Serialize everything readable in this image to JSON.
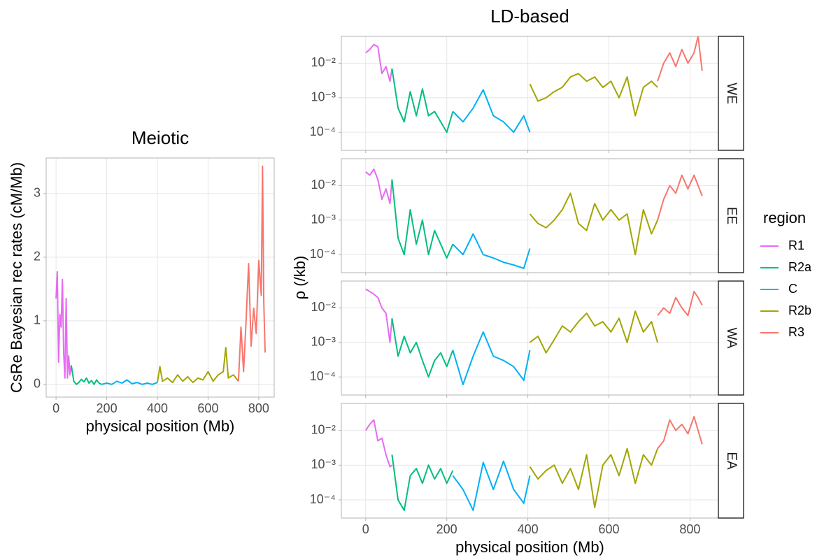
{
  "legend": {
    "title": "region"
  },
  "chart_data": [
    {
      "type": "line",
      "title": "Meiotic",
      "xlabel": "physical position (Mb)",
      "ylabel": "CsRe Bayesian rec rates (cM/Mb)",
      "xlim": [
        -39,
        861
      ],
      "ylim": [
        -0.2,
        3.56
      ],
      "xticks": [
        0,
        200,
        400,
        600,
        800
      ],
      "yticks": [
        0,
        1,
        2,
        3
      ],
      "grid": true,
      "series": [
        {
          "name": "R1",
          "color": "#E76BF3",
          "x": [
            0,
            5,
            10,
            15,
            20,
            25,
            30,
            35,
            40,
            45,
            50,
            55,
            60
          ],
          "values": [
            1.35,
            1.77,
            0.35,
            1.1,
            0.9,
            1.65,
            0.5,
            0.1,
            1.35,
            0.1,
            0.45,
            0.15,
            0.3
          ]
        },
        {
          "name": "R2a",
          "color": "#00BF7D",
          "x": [
            60,
            70,
            80,
            90,
            100,
            110,
            120,
            130,
            140,
            150,
            160,
            170,
            180
          ],
          "values": [
            0.3,
            0.05,
            0.0,
            0.03,
            0.08,
            0.04,
            0.1,
            0.02,
            0.06,
            0.0,
            0.07,
            0.02,
            0.0
          ]
        },
        {
          "name": "C",
          "color": "#00B0F6",
          "x": [
            180,
            200,
            220,
            240,
            260,
            280,
            300,
            320,
            340,
            360,
            380,
            400
          ],
          "values": [
            0.0,
            0.02,
            0.0,
            0.05,
            0.02,
            0.07,
            0.01,
            0.03,
            0.0,
            0.02,
            0.0,
            0.03
          ]
        },
        {
          "name": "R2b",
          "color": "#A3A500",
          "x": [
            400,
            410,
            420,
            440,
            460,
            480,
            500,
            520,
            540,
            560,
            580,
            600,
            620,
            640,
            660,
            670,
            680,
            700,
            720
          ],
          "values": [
            0.03,
            0.28,
            0.05,
            0.1,
            0.03,
            0.15,
            0.05,
            0.12,
            0.03,
            0.1,
            0.07,
            0.2,
            0.05,
            0.15,
            0.2,
            0.58,
            0.1,
            0.15,
            0.05
          ]
        },
        {
          "name": "R3",
          "color": "#F8766D",
          "x": [
            720,
            730,
            740,
            750,
            760,
            770,
            780,
            790,
            800,
            810,
            815,
            820,
            825
          ],
          "values": [
            0.05,
            0.9,
            0.2,
            1.0,
            1.9,
            0.6,
            1.2,
            0.8,
            1.95,
            1.4,
            3.43,
            1.3,
            0.5
          ]
        }
      ]
    },
    {
      "type": "line",
      "title": "LD-based",
      "facet": "WE",
      "ylabel": "ρ (/kb)",
      "log_y": true,
      "grid": true,
      "xlim": [
        -60,
        870
      ],
      "ylim": [
        3e-05,
        0.06
      ],
      "xticks": [
        0,
        200,
        400,
        600,
        800
      ],
      "yticks": [
        {
          "value": 0.01,
          "label": "10⁻²"
        },
        {
          "value": 0.001,
          "label": "10⁻³"
        },
        {
          "value": 0.0001,
          "label": "10⁻⁴"
        }
      ],
      "series": [
        {
          "name": "R1",
          "color": "#E76BF3",
          "x": [
            0,
            10,
            20,
            30,
            40,
            50,
            60,
            65
          ],
          "values": [
            0.02,
            0.025,
            0.035,
            0.03,
            0.005,
            0.008,
            0.003,
            0.007
          ]
        },
        {
          "name": "R2a",
          "color": "#00BF7D",
          "x": [
            65,
            80,
            95,
            110,
            125,
            140,
            155,
            170,
            185,
            200,
            215
          ],
          "values": [
            0.007,
            0.0005,
            0.0002,
            0.0015,
            0.0003,
            0.0018,
            0.0003,
            0.0004,
            0.0002,
            0.0001,
            0.0004
          ]
        },
        {
          "name": "C",
          "color": "#00B0F6",
          "x": [
            215,
            240,
            265,
            290,
            315,
            340,
            365,
            390,
            405
          ],
          "values": [
            0.0004,
            0.0002,
            0.0005,
            0.0017,
            0.0003,
            0.0002,
            0.0001,
            0.0003,
            0.0001
          ]
        },
        {
          "name": "R2b",
          "color": "#A3A500",
          "x": [
            405,
            425,
            445,
            465,
            485,
            505,
            525,
            545,
            565,
            585,
            605,
            625,
            645,
            665,
            685,
            705,
            720
          ],
          "values": [
            0.0025,
            0.0008,
            0.001,
            0.0015,
            0.002,
            0.004,
            0.005,
            0.003,
            0.004,
            0.002,
            0.003,
            0.001,
            0.004,
            0.0003,
            0.002,
            0.003,
            0.002
          ]
        },
        {
          "name": "R3",
          "color": "#F8766D",
          "x": [
            720,
            735,
            750,
            765,
            780,
            795,
            810,
            820,
            830
          ],
          "values": [
            0.003,
            0.01,
            0.02,
            0.008,
            0.025,
            0.01,
            0.02,
            0.06,
            0.006
          ]
        }
      ]
    },
    {
      "type": "line",
      "facet": "EE",
      "log_y": true,
      "grid": true,
      "xlim": [
        -60,
        870
      ],
      "ylim": [
        3e-05,
        0.06
      ],
      "xticks": [
        0,
        200,
        400,
        600,
        800
      ],
      "yticks": [
        {
          "value": 0.01,
          "label": "10⁻²"
        },
        {
          "value": 0.001,
          "label": "10⁻³"
        },
        {
          "value": 0.0001,
          "label": "10⁻⁴"
        }
      ],
      "series": [
        {
          "name": "R1",
          "color": "#E76BF3",
          "x": [
            0,
            10,
            20,
            30,
            40,
            50,
            60,
            65
          ],
          "values": [
            0.025,
            0.02,
            0.03,
            0.015,
            0.004,
            0.008,
            0.003,
            0.015
          ]
        },
        {
          "name": "R2a",
          "color": "#00BF7D",
          "x": [
            65,
            80,
            95,
            110,
            125,
            140,
            155,
            170,
            185,
            200,
            215
          ],
          "values": [
            0.015,
            0.0003,
            0.0001,
            0.002,
            0.0002,
            0.001,
            0.0001,
            0.0005,
            0.0002,
            8e-05,
            0.0002
          ]
        },
        {
          "name": "C",
          "color": "#00B0F6",
          "x": [
            215,
            240,
            265,
            290,
            315,
            340,
            365,
            390,
            405
          ],
          "values": [
            0.0002,
            0.0001,
            0.0004,
            0.0001,
            8e-05,
            6e-05,
            5e-05,
            4e-05,
            0.00015
          ]
        },
        {
          "name": "R2b",
          "color": "#A3A500",
          "x": [
            405,
            425,
            445,
            465,
            485,
            505,
            525,
            545,
            565,
            585,
            605,
            625,
            645,
            665,
            685,
            705,
            720
          ],
          "values": [
            0.0015,
            0.0008,
            0.0006,
            0.001,
            0.002,
            0.006,
            0.0008,
            0.0005,
            0.003,
            0.001,
            0.002,
            0.001,
            0.0015,
            0.0001,
            0.002,
            0.0004,
            0.001
          ]
        },
        {
          "name": "R3",
          "color": "#F8766D",
          "x": [
            720,
            735,
            750,
            765,
            780,
            795,
            810,
            820,
            830
          ],
          "values": [
            0.001,
            0.004,
            0.01,
            0.006,
            0.02,
            0.008,
            0.02,
            0.01,
            0.005
          ]
        }
      ]
    },
    {
      "type": "line",
      "facet": "WA",
      "log_y": true,
      "grid": true,
      "xlim": [
        -60,
        870
      ],
      "ylim": [
        3e-05,
        0.06
      ],
      "xticks": [
        0,
        200,
        400,
        600,
        800
      ],
      "yticks": [
        {
          "value": 0.01,
          "label": "10⁻²"
        },
        {
          "value": 0.001,
          "label": "10⁻³"
        },
        {
          "value": 0.0001,
          "label": "10⁻⁴"
        }
      ],
      "series": [
        {
          "name": "R1",
          "color": "#E76BF3",
          "x": [
            0,
            10,
            20,
            30,
            40,
            50,
            60,
            65
          ],
          "values": [
            0.035,
            0.03,
            0.025,
            0.02,
            0.01,
            0.007,
            0.001,
            0.005
          ]
        },
        {
          "name": "R2a",
          "color": "#00BF7D",
          "x": [
            65,
            80,
            95,
            110,
            125,
            140,
            155,
            170,
            185,
            200,
            215
          ],
          "values": [
            0.005,
            0.0004,
            0.0015,
            0.0005,
            0.001,
            0.0003,
            0.0001,
            0.0003,
            0.0005,
            0.0002,
            0.0006
          ]
        },
        {
          "name": "C",
          "color": "#00B0F6",
          "x": [
            215,
            240,
            265,
            290,
            315,
            340,
            365,
            390,
            405
          ],
          "values": [
            0.0006,
            6e-05,
            0.0004,
            0.002,
            0.0004,
            0.0003,
            0.0002,
            8e-05,
            0.0006
          ]
        },
        {
          "name": "R2b",
          "color": "#A3A500",
          "x": [
            405,
            425,
            445,
            465,
            485,
            505,
            525,
            545,
            565,
            585,
            605,
            625,
            645,
            665,
            685,
            705,
            720
          ],
          "values": [
            0.001,
            0.0015,
            0.0005,
            0.0012,
            0.003,
            0.002,
            0.004,
            0.007,
            0.003,
            0.004,
            0.002,
            0.005,
            0.001,
            0.008,
            0.002,
            0.004,
            0.001
          ]
        },
        {
          "name": "R3",
          "color": "#F8766D",
          "x": [
            720,
            735,
            750,
            765,
            780,
            795,
            810,
            820,
            830
          ],
          "values": [
            0.006,
            0.01,
            0.007,
            0.02,
            0.01,
            0.006,
            0.03,
            0.02,
            0.012
          ]
        }
      ]
    },
    {
      "type": "line",
      "facet": "EA",
      "xlabel": "physical position (Mb)",
      "log_y": true,
      "grid": true,
      "xlim": [
        -60,
        870
      ],
      "ylim": [
        3e-05,
        0.06
      ],
      "xticks": [
        0,
        200,
        400,
        600,
        800
      ],
      "yticks": [
        {
          "value": 0.01,
          "label": "10⁻²"
        },
        {
          "value": 0.001,
          "label": "10⁻³"
        },
        {
          "value": 0.0001,
          "label": "10⁻⁴"
        }
      ],
      "series": [
        {
          "name": "R1",
          "color": "#E76BF3",
          "x": [
            0,
            10,
            20,
            30,
            40,
            50,
            60,
            65
          ],
          "values": [
            0.01,
            0.015,
            0.02,
            0.005,
            0.006,
            0.002,
            0.0009,
            0.001
          ]
        },
        {
          "name": "R2a",
          "color": "#00BF7D",
          "x": [
            65,
            80,
            95,
            110,
            125,
            140,
            155,
            170,
            185,
            200,
            215
          ],
          "values": [
            0.002,
            0.0001,
            5e-05,
            0.0005,
            0.0008,
            0.0003,
            0.001,
            0.0004,
            0.0008,
            0.0003,
            0.0007
          ]
        },
        {
          "name": "C",
          "color": "#00B0F6",
          "x": [
            215,
            240,
            265,
            290,
            315,
            340,
            365,
            390,
            405
          ],
          "values": [
            0.0005,
            0.0002,
            5e-05,
            0.0012,
            0.0002,
            0.0013,
            0.0002,
            8e-05,
            0.0005
          ]
        },
        {
          "name": "R2b",
          "color": "#A3A500",
          "x": [
            405,
            425,
            445,
            465,
            485,
            505,
            525,
            545,
            565,
            585,
            605,
            625,
            645,
            665,
            685,
            705,
            720
          ],
          "values": [
            0.0009,
            0.0004,
            0.0007,
            0.001,
            0.0003,
            0.0008,
            0.0002,
            0.002,
            6e-05,
            0.001,
            0.002,
            0.0005,
            0.003,
            0.0003,
            0.002,
            0.001,
            0.003
          ]
        },
        {
          "name": "R3",
          "color": "#F8766D",
          "x": [
            720,
            735,
            750,
            765,
            780,
            795,
            810,
            820,
            830
          ],
          "values": [
            0.003,
            0.005,
            0.02,
            0.01,
            0.015,
            0.008,
            0.025,
            0.01,
            0.004
          ]
        }
      ]
    }
  ]
}
